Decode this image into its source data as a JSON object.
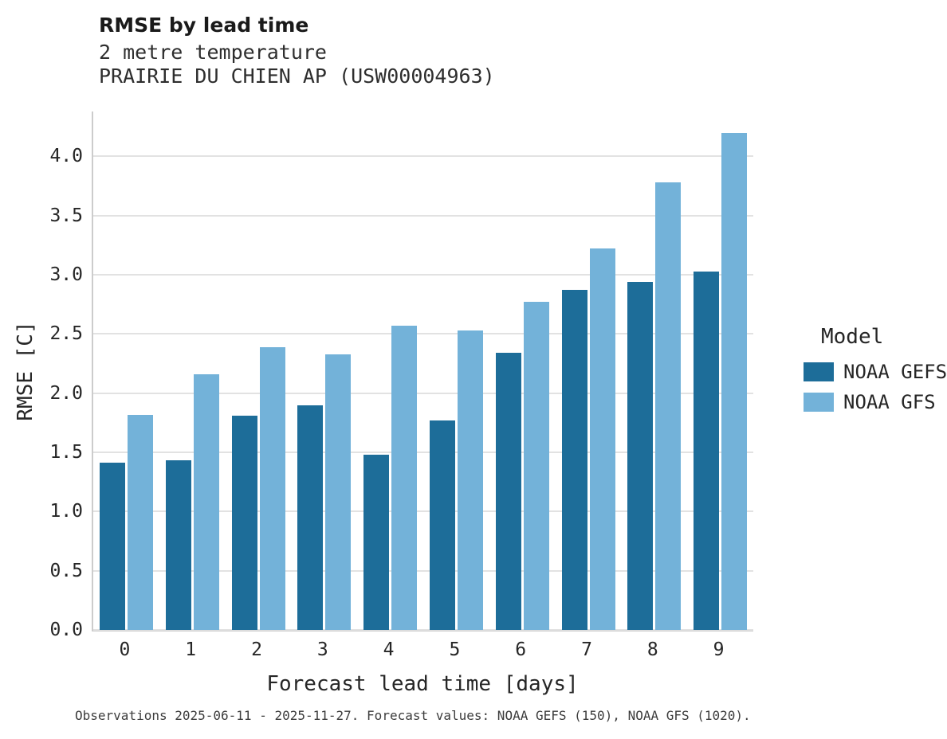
{
  "chart_data": {
    "type": "bar",
    "title": "RMSE by lead time",
    "subtitle_lines": [
      "2 metre temperature",
      "PRAIRIE DU CHIEN AP (USW00004963)"
    ],
    "xlabel": "Forecast lead time [days]",
    "ylabel": "RMSE [C]",
    "categories": [
      "0",
      "1",
      "2",
      "3",
      "4",
      "5",
      "6",
      "7",
      "8",
      "9"
    ],
    "series": [
      {
        "name": "NOAA GEFS",
        "color": "#1d6d99",
        "values": [
          1.41,
          1.43,
          1.81,
          1.9,
          1.48,
          1.77,
          2.34,
          2.87,
          2.94,
          3.03
        ]
      },
      {
        "name": "NOAA GFS",
        "color": "#73b2d9",
        "values": [
          1.82,
          2.16,
          2.39,
          2.33,
          2.57,
          2.53,
          2.77,
          3.22,
          3.78,
          4.2
        ]
      }
    ],
    "ylim": [
      0,
      4.38
    ],
    "ytick_labels": [
      "0.0",
      "0.5",
      "1.0",
      "1.5",
      "2.0",
      "2.5",
      "3.0",
      "3.5",
      "4.0"
    ],
    "grid": "horizontal",
    "legend": {
      "title": "Model",
      "position": "right"
    },
    "caption": "Observations 2025-06-11 - 2025-11-27. Forecast values: NOAA GEFS (150), NOAA GFS (1020)."
  }
}
